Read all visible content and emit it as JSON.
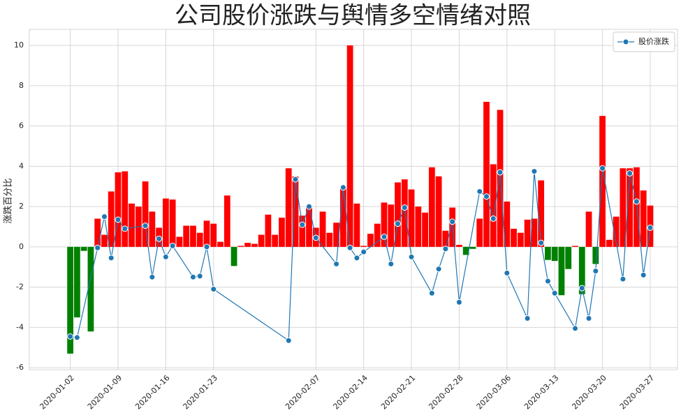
{
  "chart_data": {
    "type": "bar+line",
    "title": "公司股价涨跌与舆情多空情绪对照",
    "y_label": "涨跌百分比",
    "xlim": [
      "2019-12-27",
      "2020-03-31"
    ],
    "xticks": [
      "2020-01-02",
      "2020-01-09",
      "2020-01-16",
      "2020-01-23",
      "2020-02-07",
      "2020-02-14",
      "2020-02-21",
      "2020-02-28",
      "2020-03-06",
      "2020-03-13",
      "2020-03-20",
      "2020-03-27"
    ],
    "ylim": [
      -6.1,
      10.8
    ],
    "yticks": [
      -6,
      -4,
      -2,
      0,
      2,
      4,
      6,
      8,
      10
    ],
    "grid": true,
    "legend_position": "upper-right",
    "series": [
      {
        "type": "bar",
        "color_positive": "#ff0000",
        "color_negative": "#008000",
        "x": [
          "2020-01-02",
          "2020-01-03",
          "2020-01-04",
          "2020-01-05",
          "2020-01-06",
          "2020-01-07",
          "2020-01-08",
          "2020-01-09",
          "2020-01-10",
          "2020-01-11",
          "2020-01-12",
          "2020-01-13",
          "2020-01-14",
          "2020-01-15",
          "2020-01-16",
          "2020-01-17",
          "2020-01-18",
          "2020-01-19",
          "2020-01-20",
          "2020-01-21",
          "2020-01-22",
          "2020-01-23",
          "2020-01-24",
          "2020-01-25",
          "2020-01-26",
          "2020-01-27",
          "2020-01-28",
          "2020-01-29",
          "2020-01-30",
          "2020-01-31",
          "2020-02-01",
          "2020-02-02",
          "2020-02-03",
          "2020-02-04",
          "2020-02-05",
          "2020-02-06",
          "2020-02-07",
          "2020-02-08",
          "2020-02-09",
          "2020-02-10",
          "2020-02-11",
          "2020-02-12",
          "2020-02-13",
          "2020-02-14",
          "2020-02-15",
          "2020-02-16",
          "2020-02-17",
          "2020-02-18",
          "2020-02-19",
          "2020-02-20",
          "2020-02-21",
          "2020-02-22",
          "2020-02-23",
          "2020-02-24",
          "2020-02-25",
          "2020-02-26",
          "2020-02-27",
          "2020-02-28",
          "2020-02-29",
          "2020-03-01",
          "2020-03-02",
          "2020-03-03",
          "2020-03-04",
          "2020-03-05",
          "2020-03-06",
          "2020-03-07",
          "2020-03-08",
          "2020-03-09",
          "2020-03-10",
          "2020-03-11",
          "2020-03-12",
          "2020-03-13",
          "2020-03-14",
          "2020-03-15",
          "2020-03-16",
          "2020-03-17",
          "2020-03-18",
          "2020-03-19",
          "2020-03-20",
          "2020-03-21",
          "2020-03-22",
          "2020-03-23",
          "2020-03-24",
          "2020-03-25",
          "2020-03-26",
          "2020-03-27"
        ],
        "values": [
          -5.3,
          -3.5,
          -0.2,
          -4.2,
          1.4,
          0.6,
          2.75,
          3.7,
          3.75,
          2.15,
          2.0,
          3.25,
          1.75,
          0.95,
          2.4,
          2.35,
          0.5,
          1.05,
          1.05,
          0.7,
          1.3,
          1.15,
          0.25,
          2.55,
          -0.95,
          0.05,
          0.2,
          0.15,
          0.6,
          1.6,
          0.6,
          1.45,
          3.9,
          3.5,
          1.55,
          2.0,
          0.95,
          1.75,
          0.7,
          1.2,
          2.9,
          10.0,
          2.15,
          0.05,
          0.65,
          1.15,
          2.2,
          2.1,
          3.2,
          3.35,
          2.85,
          2.0,
          1.7,
          3.95,
          3.5,
          0.8,
          1.95,
          0.1,
          -0.4,
          -0.1,
          1.4,
          7.2,
          4.1,
          6.8,
          2.25,
          0.9,
          0.7,
          1.35,
          1.4,
          3.3,
          -0.65,
          -0.7,
          -2.4,
          -1.1,
          0.05,
          -2.35,
          1.75,
          -0.85,
          6.5,
          0.35,
          1.5,
          3.9,
          3.9,
          3.95,
          2.8,
          2.05
        ]
      },
      {
        "type": "line",
        "name": "股价涨跌",
        "color": "#1f77b4",
        "x": [
          "2020-01-02",
          "2020-01-03",
          "2020-01-06",
          "2020-01-07",
          "2020-01-08",
          "2020-01-09",
          "2020-01-10",
          "2020-01-13",
          "2020-01-14",
          "2020-01-15",
          "2020-01-16",
          "2020-01-17",
          "2020-01-20",
          "2020-01-21",
          "2020-01-22",
          "2020-01-23",
          "2020-02-03",
          "2020-02-04",
          "2020-02-05",
          "2020-02-06",
          "2020-02-07",
          "2020-02-10",
          "2020-02-11",
          "2020-02-12",
          "2020-02-13",
          "2020-02-14",
          "2020-02-17",
          "2020-02-18",
          "2020-02-19",
          "2020-02-20",
          "2020-02-21",
          "2020-02-24",
          "2020-02-25",
          "2020-02-26",
          "2020-02-27",
          "2020-02-28",
          "2020-03-02",
          "2020-03-03",
          "2020-03-04",
          "2020-03-05",
          "2020-03-06",
          "2020-03-09",
          "2020-03-10",
          "2020-03-11",
          "2020-03-12",
          "2020-03-13",
          "2020-03-16",
          "2020-03-17",
          "2020-03-18",
          "2020-03-19",
          "2020-03-20",
          "2020-03-23",
          "2020-03-24",
          "2020-03-25",
          "2020-03-26",
          "2020-03-27"
        ],
        "values": [
          -4.45,
          -4.5,
          -0.05,
          1.5,
          -0.55,
          1.35,
          0.9,
          1.05,
          -1.5,
          0.4,
          -0.5,
          0.05,
          -1.5,
          -1.45,
          0.0,
          -2.1,
          -4.65,
          3.35,
          1.1,
          2.0,
          0.45,
          -0.85,
          2.95,
          -0.05,
          -0.55,
          -0.25,
          0.5,
          -0.85,
          1.15,
          1.95,
          -0.5,
          -2.3,
          -1.1,
          -0.1,
          1.25,
          -2.75,
          2.75,
          2.5,
          1.4,
          3.7,
          -1.3,
          -3.55,
          3.75,
          0.2,
          -1.7,
          -2.3,
          -4.05,
          -2.05,
          -3.55,
          -1.2,
          3.9,
          -1.6,
          3.65,
          2.25,
          -1.4,
          0.95
        ]
      }
    ]
  }
}
